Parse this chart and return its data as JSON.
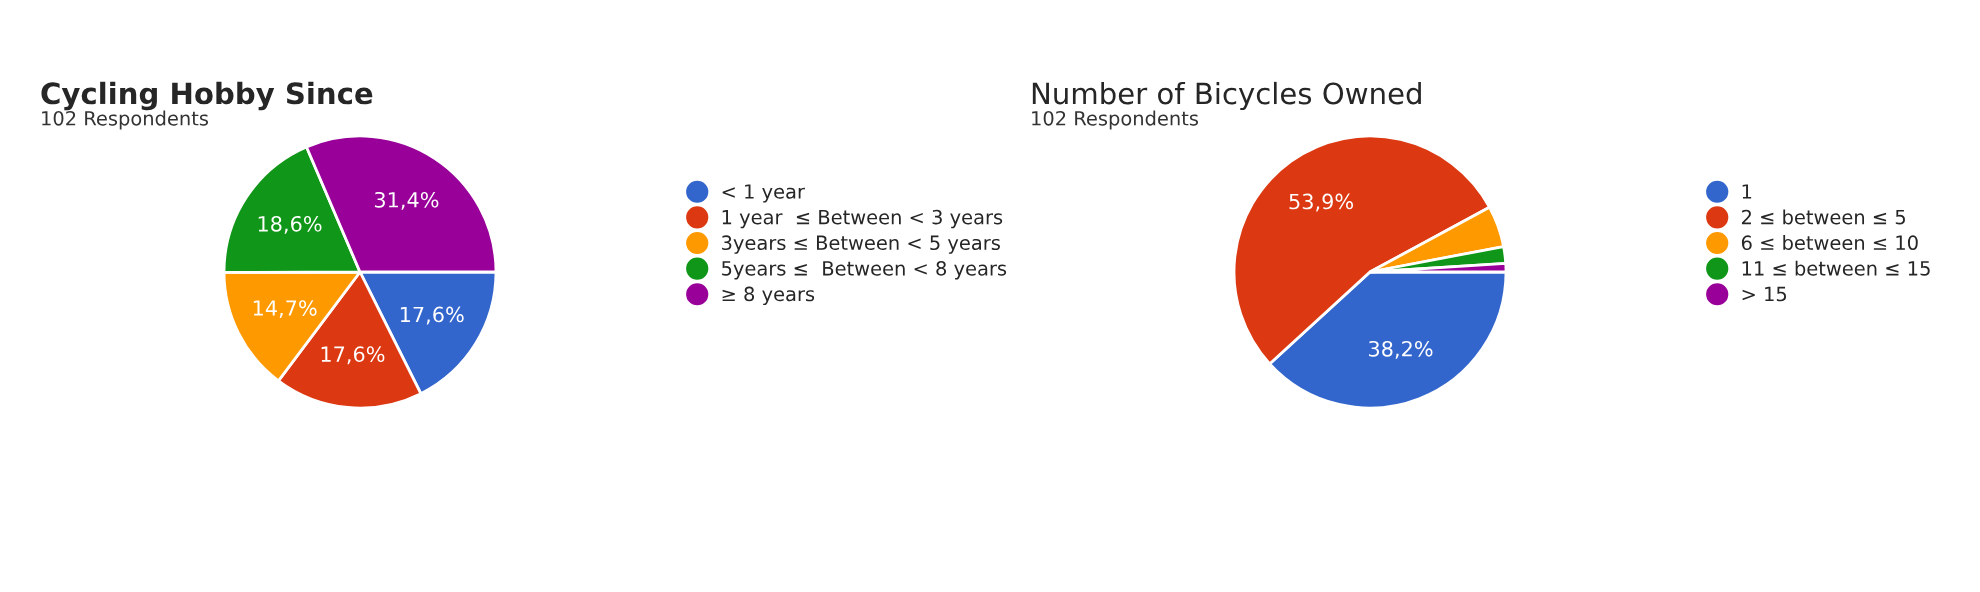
{
  "chart_data": [
    {
      "type": "pie",
      "title": "Cycling Hobby Since",
      "subtitle": "102 Respondents",
      "categories": [
        "< 1 year",
        "1 year  ≤ Between < 3 years",
        "3years ≤ Between < 5 years",
        "5years ≤  Between < 8 years",
        "≥ 8 years"
      ],
      "values": [
        17.6,
        17.6,
        14.7,
        18.6,
        31.4
      ],
      "value_labels": [
        "17,6%",
        "17,6%",
        "14,7%",
        "18,6%",
        "31,4%"
      ],
      "colors": [
        "#3366cc",
        "#dc3912",
        "#ff9900",
        "#109618",
        "#990099"
      ],
      "legend": "right"
    },
    {
      "type": "pie",
      "title": "Number of Bicycles Owned",
      "subtitle": "102 Respondents",
      "categories": [
        "1",
        "2 ≤ between ≤ 5",
        "6 ≤ between ≤ 10",
        "11 ≤ between ≤ 15",
        "> 15"
      ],
      "values": [
        38.2,
        53.9,
        4.9,
        2.0,
        1.0
      ],
      "value_labels": [
        "38,2%",
        "53,9%",
        null,
        null,
        null
      ],
      "colors": [
        "#3366cc",
        "#dc3912",
        "#ff9900",
        "#109618",
        "#990099"
      ],
      "legend": "right"
    }
  ]
}
